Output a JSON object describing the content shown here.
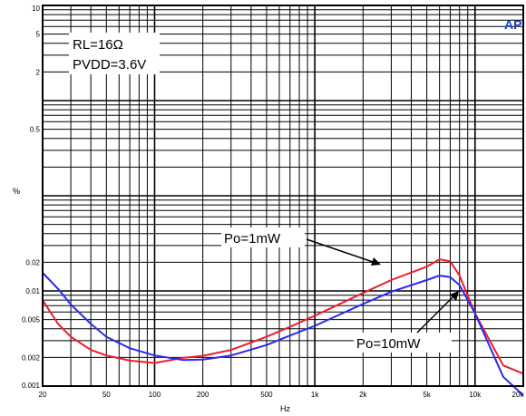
{
  "chart_data": {
    "type": "line",
    "x_scale": "log",
    "y_scale": "log",
    "grid": true,
    "xlim": [
      20,
      20000
    ],
    "ylim": [
      0.001,
      10
    ],
    "x_ticks": [
      {
        "value": 20,
        "label": "20"
      },
      {
        "value": 50,
        "label": "50"
      },
      {
        "value": 100,
        "label": "100"
      },
      {
        "value": 200,
        "label": "200"
      },
      {
        "value": 500,
        "label": "500"
      },
      {
        "value": 1000,
        "label": "1k"
      },
      {
        "value": 2000,
        "label": "2k"
      },
      {
        "value": 5000,
        "label": "5k"
      },
      {
        "value": 10000,
        "label": "10k"
      },
      {
        "value": 20000,
        "label": "20k"
      }
    ],
    "y_ticks": [
      {
        "value": 10,
        "label": "10"
      },
      {
        "value": 5,
        "label": "5"
      },
      {
        "value": 2,
        "label": "2"
      },
      {
        "value": 0.5,
        "label": "0.5"
      },
      {
        "value": 0.02,
        "label": "0.02"
      },
      {
        "value": 0.01,
        "label": "0.01"
      },
      {
        "value": 0.005,
        "label": "0.005"
      },
      {
        "value": 0.002,
        "label": "0.002"
      },
      {
        "value": 0.001,
        "label": "0.001"
      }
    ],
    "xlabel": "Hz",
    "ylabel": "%",
    "text_box": [
      "RL=16Ω",
      "PVDD=3.6V"
    ],
    "corner_mark": "AP",
    "series": [
      {
        "name": "Po=1mW",
        "color": "#ee1c2e",
        "points": [
          [
            20,
            0.008
          ],
          [
            25,
            0.0045
          ],
          [
            30,
            0.0033
          ],
          [
            40,
            0.0024
          ],
          [
            50,
            0.0021
          ],
          [
            70,
            0.00185
          ],
          [
            100,
            0.00175
          ],
          [
            150,
            0.00198
          ],
          [
            200,
            0.00208
          ],
          [
            300,
            0.0024
          ],
          [
            500,
            0.0033
          ],
          [
            700,
            0.0042
          ],
          [
            1000,
            0.0055
          ],
          [
            2000,
            0.0095
          ],
          [
            3000,
            0.013
          ],
          [
            5000,
            0.018
          ],
          [
            6000,
            0.0215
          ],
          [
            7000,
            0.0205
          ],
          [
            8000,
            0.0145
          ],
          [
            10000,
            0.0058
          ],
          [
            15000,
            0.00165
          ],
          [
            20000,
            0.00135
          ]
        ]
      },
      {
        "name": "Po=10mW",
        "color": "#2a2aee",
        "points": [
          [
            20,
            0.0155
          ],
          [
            25,
            0.0105
          ],
          [
            30,
            0.0072
          ],
          [
            40,
            0.0045
          ],
          [
            50,
            0.0033
          ],
          [
            70,
            0.0025
          ],
          [
            100,
            0.0021
          ],
          [
            150,
            0.00188
          ],
          [
            200,
            0.0019
          ],
          [
            300,
            0.0021
          ],
          [
            500,
            0.0027
          ],
          [
            700,
            0.0034
          ],
          [
            1000,
            0.0043
          ],
          [
            2000,
            0.0073
          ],
          [
            3000,
            0.0098
          ],
          [
            5000,
            0.013
          ],
          [
            6000,
            0.0145
          ],
          [
            7000,
            0.014
          ],
          [
            8000,
            0.0115
          ],
          [
            10000,
            0.0058
          ],
          [
            15000,
            0.00125
          ],
          [
            20000,
            0.0008
          ]
        ]
      }
    ]
  }
}
